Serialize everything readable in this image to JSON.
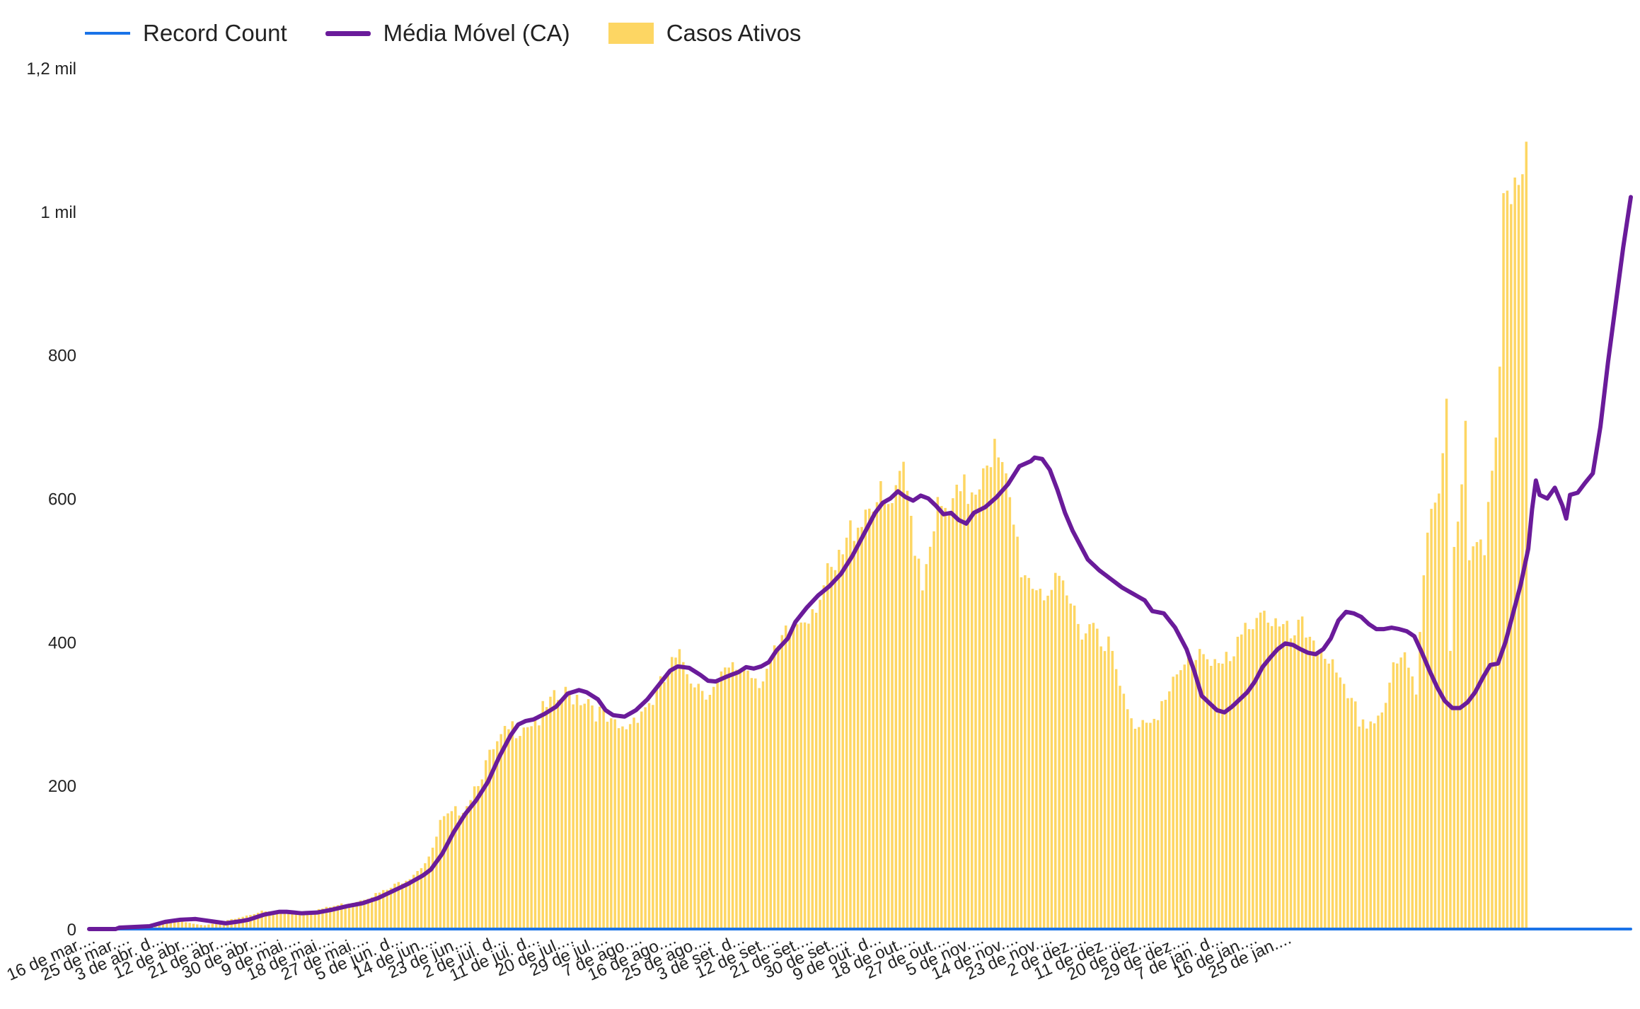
{
  "colors": {
    "record_count": "#1a73e8",
    "media_movel": "#6a1b9a",
    "casos_ativos": "#fdd663"
  },
  "legend": {
    "record_count": "Record Count",
    "media_movel": "Média Móvel (CA)",
    "casos_ativos": "Casos Ativos"
  },
  "chart_data": {
    "type": "bar",
    "title": "",
    "xlabel": "",
    "ylabel": "",
    "ylim": [
      0,
      1200
    ],
    "yticks": [
      {
        "value": 0,
        "label": "0"
      },
      {
        "value": 200,
        "label": "200"
      },
      {
        "value": 400,
        "label": "400"
      },
      {
        "value": 600,
        "label": "600"
      },
      {
        "value": 800,
        "label": "800"
      },
      {
        "value": 1000,
        "label": "1 mil"
      },
      {
        "value": 1200,
        "label": "1,2 mil"
      }
    ],
    "xlabels": [
      "16 de mar....",
      "25 de mar....",
      "3 de abr. d...",
      "12 de abr....",
      "21 de abr....",
      "30 de abr....",
      "9 de mai....",
      "18 de mai....",
      "27 de mai....",
      "5 de jun. d...",
      "14 de jun....",
      "23 de jun....",
      "2 de jul. d...",
      "11 de jul. d...",
      "20 de jul....",
      "29 de jul....",
      "7 de ago....",
      "16 de ago....",
      "25 de ago....",
      "3 de set. d...",
      "12 de set....",
      "21 de set....",
      "30 de set....",
      "9 de out. d...",
      "18 de out....",
      "27 de out....",
      "5 de nov....",
      "14 de nov....",
      "23 de nov....",
      "2 de dez....",
      "11 de dez....",
      "20 de dez....",
      "29 de dez....",
      "7 de jan. d...",
      "16 de jan....",
      "25 de jan...."
    ],
    "days_per_label": 9,
    "series": [
      {
        "name": "Casos Ativos",
        "type": "bar",
        "keypoints": [
          [
            0,
            0
          ],
          [
            9,
            0
          ],
          [
            12,
            2
          ],
          [
            15,
            6
          ],
          [
            18,
            10
          ],
          [
            22,
            13
          ],
          [
            25,
            10
          ],
          [
            30,
            5
          ],
          [
            36,
            12
          ],
          [
            45,
            25
          ],
          [
            54,
            22
          ],
          [
            62,
            30
          ],
          [
            70,
            40
          ],
          [
            78,
            55
          ],
          [
            84,
            75
          ],
          [
            87,
            90
          ],
          [
            90,
            110
          ],
          [
            92,
            150
          ],
          [
            95,
            160
          ],
          [
            99,
            180
          ],
          [
            102,
            215
          ],
          [
            106,
            250
          ],
          [
            110,
            280
          ],
          [
            114,
            295
          ],
          [
            118,
            300
          ],
          [
            122,
            320
          ],
          [
            127,
            335
          ],
          [
            131,
            330
          ],
          [
            134,
            305
          ],
          [
            137,
            285
          ],
          [
            140,
            280
          ],
          [
            144,
            310
          ],
          [
            149,
            330
          ],
          [
            153,
            370
          ],
          [
            156,
            380
          ],
          [
            160,
            350
          ],
          [
            164,
            340
          ],
          [
            168,
            360
          ],
          [
            172,
            375
          ],
          [
            176,
            360
          ],
          [
            180,
            380
          ],
          [
            184,
            420
          ],
          [
            188,
            450
          ],
          [
            192,
            480
          ],
          [
            196,
            500
          ],
          [
            199,
            540
          ],
          [
            201,
            580
          ],
          [
            204,
            600
          ],
          [
            206,
            620
          ],
          [
            209,
            590
          ],
          [
            212,
            600
          ],
          [
            214,
            640
          ],
          [
            217,
            560
          ],
          [
            219,
            500
          ],
          [
            222,
            590
          ],
          [
            225,
            580
          ],
          [
            228,
            600
          ],
          [
            231,
            620
          ],
          [
            234,
            650
          ],
          [
            236,
            690
          ],
          [
            238,
            670
          ],
          [
            241,
            620
          ],
          [
            243,
            570
          ],
          [
            245,
            520
          ],
          [
            247,
            500
          ],
          [
            250,
            490
          ],
          [
            253,
            480
          ],
          [
            256,
            470
          ],
          [
            259,
            450
          ],
          [
            262,
            430
          ],
          [
            265,
            440
          ],
          [
            268,
            400
          ],
          [
            271,
            340
          ],
          [
            274,
            290
          ],
          [
            277,
            300
          ],
          [
            280,
            310
          ],
          [
            283,
            320
          ],
          [
            286,
            350
          ],
          [
            289,
            380
          ],
          [
            292,
            400
          ],
          [
            295,
            390
          ],
          [
            298,
            370
          ],
          [
            301,
            380
          ],
          [
            304,
            420
          ],
          [
            307,
            460
          ],
          [
            310,
            450
          ],
          [
            313,
            420
          ],
          [
            316,
            410
          ],
          [
            319,
            420
          ],
          [
            322,
            415
          ],
          [
            325,
            400
          ],
          [
            328,
            350
          ],
          [
            331,
            320
          ],
          [
            334,
            300
          ],
          [
            337,
            295
          ],
          [
            340,
            310
          ],
          [
            343,
            360
          ],
          [
            346,
            380
          ],
          [
            349,
            340
          ],
          [
            351,
            520
          ],
          [
            353,
            620
          ],
          [
            355,
            640
          ],
          [
            357,
            720
          ],
          [
            358,
            390
          ],
          [
            359,
            530
          ],
          [
            361,
            600
          ],
          [
            362,
            700
          ],
          [
            363,
            520
          ],
          [
            365,
            580
          ],
          [
            367,
            560
          ],
          [
            369,
            660
          ],
          [
            370,
            700
          ],
          [
            371,
            780
          ],
          [
            372,
            990
          ],
          [
            373,
            1010
          ],
          [
            375,
            1010
          ],
          [
            376,
            1030
          ],
          [
            378,
            1060
          ]
        ]
      },
      {
        "name": "Média Móvel (CA)",
        "type": "line",
        "keypoints": [
          [
            0,
            0
          ],
          [
            7,
            0
          ],
          [
            8,
            2
          ],
          [
            12,
            3
          ],
          [
            16,
            4
          ],
          [
            20,
            10
          ],
          [
            24,
            13
          ],
          [
            28,
            14
          ],
          [
            32,
            11
          ],
          [
            36,
            8
          ],
          [
            40,
            11
          ],
          [
            42,
            13
          ],
          [
            46,
            20
          ],
          [
            50,
            24
          ],
          [
            52,
            24
          ],
          [
            56,
            22
          ],
          [
            60,
            23
          ],
          [
            64,
            27
          ],
          [
            68,
            32
          ],
          [
            72,
            36
          ],
          [
            76,
            43
          ],
          [
            80,
            53
          ],
          [
            84,
            63
          ],
          [
            88,
            75
          ],
          [
            90,
            83
          ],
          [
            93,
            105
          ],
          [
            96,
            135
          ],
          [
            99,
            160
          ],
          [
            102,
            180
          ],
          [
            105,
            205
          ],
          [
            108,
            240
          ],
          [
            111,
            270
          ],
          [
            113,
            285
          ],
          [
            115,
            290
          ],
          [
            117,
            292
          ],
          [
            120,
            300
          ],
          [
            123,
            310
          ],
          [
            126,
            328
          ],
          [
            129,
            333
          ],
          [
            131,
            330
          ],
          [
            134,
            320
          ],
          [
            136,
            305
          ],
          [
            138,
            298
          ],
          [
            141,
            296
          ],
          [
            144,
            305
          ],
          [
            147,
            320
          ],
          [
            150,
            340
          ],
          [
            153,
            360
          ],
          [
            155,
            366
          ],
          [
            158,
            364
          ],
          [
            161,
            354
          ],
          [
            163,
            346
          ],
          [
            165,
            345
          ],
          [
            168,
            352
          ],
          [
            171,
            358
          ],
          [
            173,
            365
          ],
          [
            175,
            363
          ],
          [
            177,
            366
          ],
          [
            179,
            372
          ],
          [
            181,
            388
          ],
          [
            184,
            405
          ],
          [
            186,
            428
          ],
          [
            189,
            448
          ],
          [
            192,
            465
          ],
          [
            195,
            478
          ],
          [
            198,
            495
          ],
          [
            201,
            520
          ],
          [
            204,
            550
          ],
          [
            207,
            580
          ],
          [
            209,
            594
          ],
          [
            211,
            600
          ],
          [
            213,
            610
          ],
          [
            215,
            602
          ],
          [
            217,
            597
          ],
          [
            219,
            604
          ],
          [
            221,
            600
          ],
          [
            223,
            590
          ],
          [
            225,
            578
          ],
          [
            227,
            580
          ],
          [
            229,
            570
          ],
          [
            231,
            565
          ],
          [
            233,
            580
          ],
          [
            236,
            588
          ],
          [
            239,
            602
          ],
          [
            242,
            620
          ],
          [
            245,
            645
          ],
          [
            248,
            652
          ],
          [
            249,
            657
          ],
          [
            251,
            655
          ],
          [
            253,
            640
          ],
          [
            255,
            612
          ],
          [
            257,
            580
          ],
          [
            259,
            555
          ],
          [
            261,
            535
          ],
          [
            263,
            515
          ],
          [
            266,
            500
          ],
          [
            269,
            488
          ],
          [
            272,
            476
          ],
          [
            275,
            467
          ],
          [
            278,
            458
          ],
          [
            280,
            443
          ],
          [
            283,
            440
          ],
          [
            286,
            420
          ],
          [
            289,
            390
          ],
          [
            291,
            360
          ],
          [
            293,
            325
          ],
          [
            295,
            315
          ],
          [
            297,
            305
          ],
          [
            299,
            302
          ],
          [
            301,
            310
          ],
          [
            303,
            320
          ],
          [
            305,
            330
          ],
          [
            307,
            345
          ],
          [
            309,
            365
          ],
          [
            311,
            378
          ],
          [
            313,
            390
          ],
          [
            315,
            398
          ],
          [
            317,
            396
          ],
          [
            319,
            390
          ],
          [
            321,
            385
          ],
          [
            323,
            383
          ],
          [
            325,
            390
          ],
          [
            327,
            405
          ],
          [
            329,
            430
          ],
          [
            331,
            442
          ],
          [
            333,
            440
          ],
          [
            335,
            435
          ],
          [
            337,
            425
          ],
          [
            339,
            418
          ],
          [
            341,
            418
          ],
          [
            343,
            420
          ],
          [
            345,
            418
          ],
          [
            347,
            415
          ],
          [
            349,
            408
          ],
          [
            351,
            385
          ],
          [
            353,
            360
          ],
          [
            355,
            337
          ],
          [
            357,
            318
          ],
          [
            359,
            308
          ],
          [
            361,
            308
          ],
          [
            363,
            316
          ],
          [
            365,
            330
          ],
          [
            367,
            350
          ],
          [
            369,
            368
          ],
          [
            371,
            370
          ],
          [
            373,
            400
          ],
          [
            375,
            440
          ],
          [
            377,
            480
          ],
          [
            379,
            530
          ],
          [
            380,
            585
          ],
          [
            381,
            625
          ],
          [
            382,
            605
          ],
          [
            384,
            600
          ],
          [
            386,
            615
          ],
          [
            388,
            590
          ],
          [
            389,
            572
          ],
          [
            390,
            605
          ],
          [
            392,
            608
          ],
          [
            394,
            622
          ],
          [
            396,
            635
          ],
          [
            398,
            700
          ],
          [
            400,
            790
          ],
          [
            402,
            870
          ],
          [
            404,
            950
          ],
          [
            406,
            1020
          ]
        ]
      },
      {
        "name": "Record Count",
        "type": "line",
        "keypoints": [
          [
            0,
            0
          ],
          [
            406,
            0
          ]
        ]
      }
    ]
  }
}
